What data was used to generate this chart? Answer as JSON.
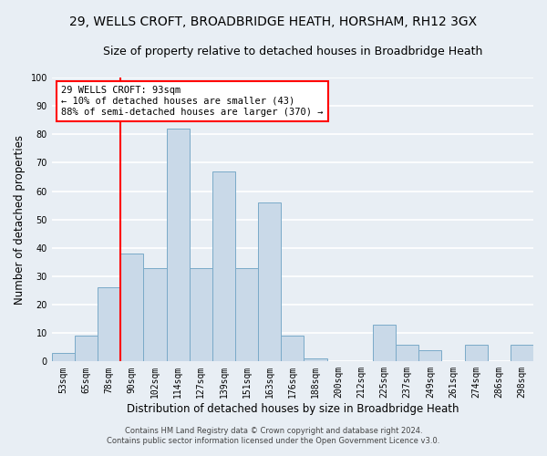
{
  "title": "29, WELLS CROFT, BROADBRIDGE HEATH, HORSHAM, RH12 3GX",
  "subtitle": "Size of property relative to detached houses in Broadbridge Heath",
  "xlabel": "Distribution of detached houses by size in Broadbridge Heath",
  "ylabel": "Number of detached properties",
  "footnote1": "Contains HM Land Registry data © Crown copyright and database right 2024.",
  "footnote2": "Contains public sector information licensed under the Open Government Licence v3.0.",
  "categories": [
    "53sqm",
    "65sqm",
    "78sqm",
    "90sqm",
    "102sqm",
    "114sqm",
    "127sqm",
    "139sqm",
    "151sqm",
    "163sqm",
    "176sqm",
    "188sqm",
    "200sqm",
    "212sqm",
    "225sqm",
    "237sqm",
    "249sqm",
    "261sqm",
    "274sqm",
    "286sqm",
    "298sqm"
  ],
  "values": [
    3,
    9,
    26,
    38,
    33,
    82,
    33,
    67,
    33,
    56,
    9,
    1,
    0,
    0,
    13,
    6,
    4,
    0,
    6,
    0,
    6
  ],
  "bar_color": "#c9d9e8",
  "bar_edge_color": "#7aaac8",
  "annotation_line1": "29 WELLS CROFT: 93sqm",
  "annotation_line2": "← 10% of detached houses are smaller (43)",
  "annotation_line3": "88% of semi-detached houses are larger (370) →",
  "vline_x_index": 3,
  "ylim": [
    0,
    100
  ],
  "yticks": [
    0,
    10,
    20,
    30,
    40,
    50,
    60,
    70,
    80,
    90,
    100
  ],
  "background_color": "#e8eef4",
  "grid_color": "#ffffff",
  "title_fontsize": 10,
  "subtitle_fontsize": 9,
  "tick_fontsize": 7,
  "ylabel_fontsize": 8.5,
  "xlabel_fontsize": 8.5,
  "annot_fontsize": 7.5
}
